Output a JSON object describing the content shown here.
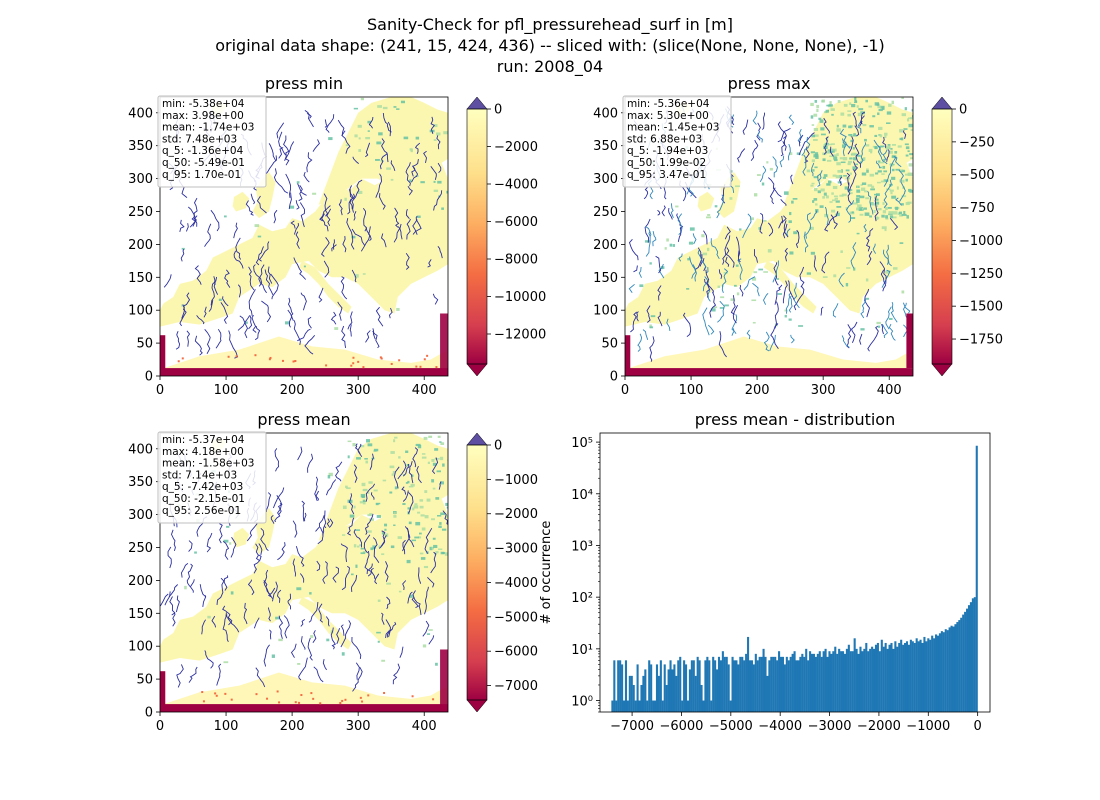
{
  "figure": {
    "title_lines": [
      "Sanity-Check for pfl_pressurehead_surf in [m]",
      "original data shape: (241, 15, 424, 436) -- sliced with: (slice(None, None, None), -1)",
      "run: 2008_04"
    ]
  },
  "chart_data": [
    {
      "type": "heatmap",
      "title": "press min",
      "xlabel": "",
      "ylabel": "",
      "xlim": [
        0,
        436
      ],
      "ylim": [
        0,
        424
      ],
      "x_ticks": [
        0,
        100,
        200,
        300,
        400
      ],
      "y_ticks": [
        0,
        50,
        100,
        150,
        200,
        250,
        300,
        350,
        400
      ],
      "grid": false,
      "colorbar": {
        "ticks": [
          0,
          -2000,
          -4000,
          -6000,
          -8000,
          -10000,
          -12000
        ],
        "tick_labels": [
          "0",
          "−2000",
          "−4000",
          "−6000",
          "−8000",
          "−10000",
          "−12000"
        ],
        "range": [
          -13600,
          0
        ],
        "extend": "both",
        "colormap": "Spectral"
      },
      "stats": [
        "min: -5.38e+04",
        "max: 3.98e+00",
        "mean: -1.74e+03",
        "std: 7.48e+03",
        "q_5: -1.36e+04",
        "q_50: -5.49e-01",
        "q_95: 1.70e-01"
      ]
    },
    {
      "type": "heatmap",
      "title": "press max",
      "xlabel": "",
      "ylabel": "",
      "xlim": [
        0,
        436
      ],
      "ylim": [
        0,
        424
      ],
      "x_ticks": [
        0,
        100,
        200,
        300,
        400
      ],
      "y_ticks": [
        0,
        50,
        100,
        150,
        200,
        250,
        300,
        350,
        400
      ],
      "grid": false,
      "colorbar": {
        "ticks": [
          0,
          -250,
          -500,
          -750,
          -1000,
          -1250,
          -1500,
          -1750
        ],
        "tick_labels": [
          "0",
          "−250",
          "−500",
          "−750",
          "−1000",
          "−1250",
          "−1500",
          "−1750"
        ],
        "range": [
          -1940,
          0
        ],
        "extend": "both",
        "colormap": "Spectral"
      },
      "stats": [
        "min: -5.36e+04",
        "max: 5.30e+00",
        "mean: -1.45e+03",
        "std: 6.88e+03",
        "q_5: -1.94e+03",
        "q_50: 1.99e-02",
        "q_95: 3.47e-01"
      ]
    },
    {
      "type": "heatmap",
      "title": "press mean",
      "xlabel": "",
      "ylabel": "",
      "xlim": [
        0,
        436
      ],
      "ylim": [
        0,
        424
      ],
      "x_ticks": [
        0,
        100,
        200,
        300,
        400
      ],
      "y_ticks": [
        0,
        50,
        100,
        150,
        200,
        250,
        300,
        350,
        400
      ],
      "grid": false,
      "colorbar": {
        "ticks": [
          0,
          -1000,
          -2000,
          -3000,
          -4000,
          -5000,
          -6000,
          -7000
        ],
        "tick_labels": [
          "0",
          "−1000",
          "−2000",
          "−3000",
          "−4000",
          "−5000",
          "−6000",
          "−7000"
        ],
        "range": [
          -7420,
          0
        ],
        "extend": "both",
        "colormap": "Spectral"
      },
      "stats": [
        "min: -5.37e+04",
        "max: 4.18e+00",
        "mean: -1.58e+03",
        "std: 7.14e+03",
        "q_5: -7.42e+03",
        "q_50: -2.15e-01",
        "q_95: 2.56e-01"
      ]
    },
    {
      "type": "bar",
      "title": "press mean - distribution",
      "xlabel": "",
      "ylabel": "# of occurrence",
      "log_y": true,
      "xlim": [
        -7650,
        250
      ],
      "ylim": [
        0.6,
        150000
      ],
      "x_ticks": [
        -7000,
        -6000,
        -5000,
        -4000,
        -3000,
        -2000,
        -1000,
        0
      ],
      "x_tick_labels": [
        "−7000",
        "−6000",
        "−5000",
        "−4000",
        "−3000",
        "−2000",
        "−1000",
        "0"
      ],
      "y_ticks": [
        1,
        10,
        100,
        1000,
        10000,
        100000
      ],
      "y_tick_labels": [
        "10⁰",
        "10¹",
        "10²",
        "10³",
        "10⁴",
        "10⁵"
      ],
      "bar_color": "#1f77b4",
      "bin_range": [
        -7420,
        0
      ],
      "counts": [
        1,
        6,
        1,
        6,
        6,
        5,
        1,
        6,
        1,
        3,
        3,
        2,
        1,
        5,
        1,
        2,
        3,
        4,
        1,
        6,
        5,
        1,
        1,
        5,
        3,
        6,
        1,
        5,
        2,
        4,
        6,
        4,
        5,
        3,
        6,
        7,
        1,
        6,
        5,
        1,
        4,
        6,
        6,
        3,
        7,
        6,
        2,
        1,
        6,
        7,
        6,
        1,
        7,
        6,
        4,
        7,
        6,
        9,
        7,
        7,
        5,
        1,
        7,
        6,
        6,
        5,
        7,
        7,
        6,
        8,
        17,
        6,
        6,
        5,
        8,
        6,
        7,
        7,
        10,
        7,
        3,
        6,
        7,
        7,
        7,
        6,
        9,
        7,
        7,
        5,
        7,
        6,
        7,
        8,
        9,
        6,
        6,
        7,
        8,
        7,
        10,
        6,
        9,
        8,
        8,
        7,
        8,
        9,
        7,
        9,
        10,
        7,
        9,
        8,
        9,
        11,
        8,
        10,
        9,
        9,
        8,
        10,
        12,
        9,
        9,
        16,
        10,
        8,
        11,
        9,
        10,
        13,
        9,
        10,
        11,
        10,
        12,
        13,
        9,
        15,
        11,
        13,
        10,
        12,
        13,
        10,
        14,
        11,
        13,
        15,
        12,
        13,
        14,
        12,
        15,
        14,
        13,
        16,
        14,
        15,
        13,
        17,
        14,
        16,
        15,
        18,
        16,
        19,
        18,
        20,
        22,
        21,
        24,
        23,
        26,
        28,
        27,
        30,
        33,
        36,
        40,
        46,
        52,
        60,
        70,
        80,
        95,
        100,
        85000
      ]
    }
  ]
}
